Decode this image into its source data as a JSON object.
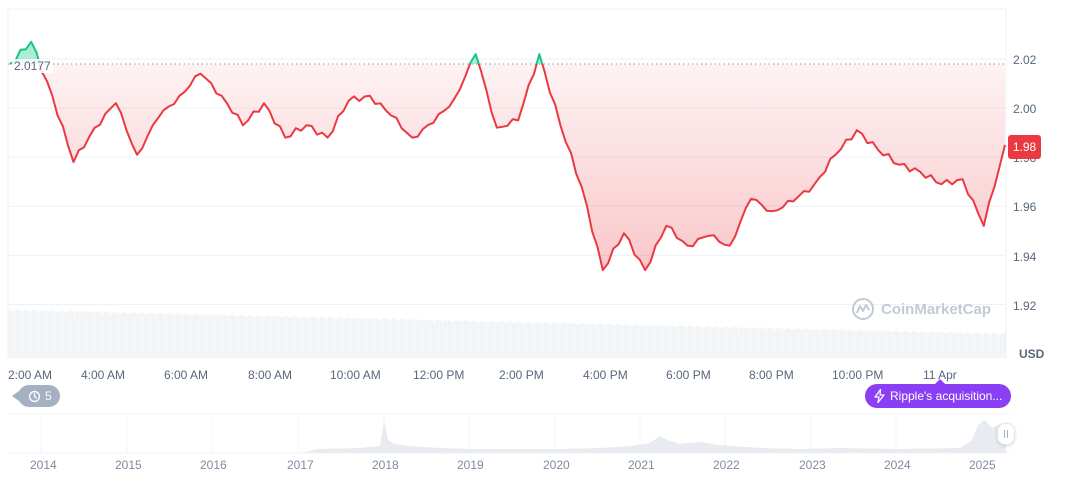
{
  "chart_data": {
    "type": "line",
    "title": "",
    "xlabel": "",
    "ylabel": "USD",
    "currency_label": "USD",
    "ylim": [
      1.915,
      2.03
    ],
    "y_ticks": [
      "2.02",
      "2.00",
      "1.98",
      "1.96",
      "1.94",
      "1.92"
    ],
    "x_ticks": [
      "2:00 AM",
      "4:00 AM",
      "6:00 AM",
      "8:00 AM",
      "10:00 AM",
      "12:00 PM",
      "2:00 PM",
      "4:00 PM",
      "6:00 PM",
      "8:00 PM",
      "10:00 PM",
      "11 Apr"
    ],
    "baseline_value": 2.0177,
    "baseline_label": "2.0177",
    "current_price": "1.98",
    "grid": true,
    "legend": "none",
    "series": [
      {
        "name": "Price (USD)",
        "color_above_baseline": "#16c784",
        "color_below_baseline": "#ea3943",
        "x": [
          "~1:45 AM",
          "2:30 AM",
          "3:00 AM",
          "3:30 AM",
          "4:00 AM",
          "4:30 AM",
          "5:00 AM",
          "5:30 AM",
          "6:00 AM",
          "6:30 AM",
          "7:00 AM",
          "7:30 AM",
          "8:00 AM",
          "8:30 AM",
          "9:00 AM",
          "9:30 AM",
          "10:00 AM",
          "10:30 AM",
          "11:00 AM",
          "11:30 AM",
          "12:00 PM",
          "12:30 PM",
          "1:00 PM",
          "1:30 PM",
          "2:00 PM",
          "2:30 PM",
          "3:00 PM",
          "3:30 PM",
          "4:00 PM",
          "4:30 PM",
          "5:00 PM",
          "5:30 PM",
          "6:00 PM",
          "6:30 PM",
          "7:00 PM",
          "7:30 PM",
          "8:00 PM",
          "8:30 PM",
          "9:00 PM",
          "9:30 PM",
          "10:00 PM",
          "10:30 PM",
          "11:00 PM",
          "11:30 PM",
          "12:00 AM",
          "12:30 AM",
          "1:00 AM",
          "1:30 AM"
        ],
        "values": [
          2.018,
          2.027,
          2.005,
          1.978,
          1.992,
          2.002,
          1.981,
          1.996,
          2.005,
          2.014,
          2.005,
          1.993,
          2.002,
          1.988,
          1.993,
          1.988,
          2.003,
          2.005,
          1.997,
          1.988,
          1.994,
          2.004,
          2.022,
          1.992,
          1.995,
          2.022,
          1.993,
          1.968,
          1.934,
          1.949,
          1.934,
          1.952,
          1.944,
          1.948,
          1.944,
          1.963,
          1.958,
          1.962,
          1.969,
          1.981,
          1.991,
          1.983,
          1.977,
          1.974,
          1.969,
          1.971,
          1.952,
          1.985
        ]
      }
    ],
    "volume_series": {
      "name": "Volume",
      "color": "#eff2f5",
      "trend": "slowly decreasing"
    },
    "overview_navigator": {
      "type": "area",
      "year_ticks": [
        "2014",
        "2015",
        "2016",
        "2017",
        "2018",
        "2019",
        "2020",
        "2021",
        "2022",
        "2023",
        "2024",
        "2025"
      ],
      "notable_peaks": [
        "2018",
        "2021",
        "2025"
      ]
    }
  },
  "annotations": {
    "history_badge": {
      "icon": "history-icon",
      "count": "5"
    },
    "event_badge": {
      "icon": "lightning-icon",
      "label": "Ripple's acquisition..."
    }
  },
  "watermark": {
    "text": "CoinMarketCap"
  },
  "colors": {
    "up": "#16c784",
    "down": "#ea3943",
    "event": "#8b3ff5",
    "badge_gray": "#a6b0c3",
    "axis_text": "#58667e",
    "grid": "#eff2f5"
  }
}
